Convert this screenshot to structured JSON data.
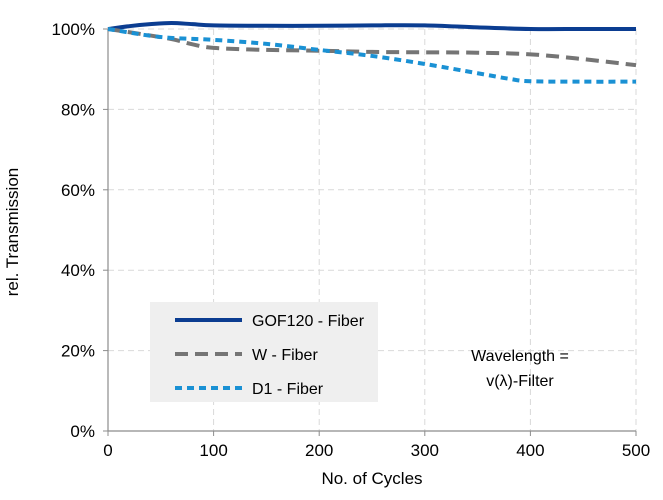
{
  "chart_data": {
    "type": "line",
    "xlabel": "No. of Cycles",
    "ylabel": "rel. Transmission",
    "xlim": [
      0,
      500
    ],
    "ylim": [
      0,
      100
    ],
    "x_ticks": [
      0,
      100,
      200,
      300,
      400,
      500
    ],
    "x_tick_labels": [
      "0",
      "100",
      "200",
      "300",
      "400",
      "500"
    ],
    "y_ticks": [
      0,
      20,
      40,
      60,
      80,
      100
    ],
    "y_tick_labels": [
      "0%",
      "20%",
      "40%",
      "60%",
      "80%",
      "100%"
    ],
    "grid": true,
    "legend_position": "lower-left",
    "annotation": {
      "line1": "Wavelength =",
      "line2": "v(λ)-Filter"
    },
    "series": [
      {
        "name": "GOF120 - Fiber",
        "style": "solid",
        "color": "#0b3d91",
        "x": [
          0,
          20,
          40,
          60,
          80,
          100,
          150,
          200,
          250,
          300,
          350,
          400,
          450,
          500
        ],
        "y": [
          100,
          100.7,
          101.2,
          101.5,
          101.2,
          100.9,
          100.8,
          100.8,
          100.9,
          100.9,
          100.4,
          100.0,
          100.0,
          100.0
        ]
      },
      {
        "name": "W - Fiber",
        "style": "long-dash",
        "color": "#757575",
        "x": [
          0,
          30,
          60,
          80,
          100,
          150,
          200,
          250,
          300,
          350,
          400,
          450,
          500
        ],
        "y": [
          100,
          98.8,
          97.5,
          96.2,
          95.3,
          94.8,
          94.6,
          94.3,
          94.2,
          94.1,
          93.7,
          92.5,
          91.0
        ]
      },
      {
        "name": "D1 - Fiber",
        "style": "short-dash",
        "color": "#1a91d4",
        "x": [
          0,
          50,
          100,
          150,
          200,
          250,
          300,
          350,
          380,
          400,
          450,
          500
        ],
        "y": [
          100,
          98.0,
          97.3,
          96.3,
          94.8,
          93.3,
          91.3,
          89.0,
          87.6,
          87.0,
          86.9,
          86.9
        ]
      }
    ]
  }
}
